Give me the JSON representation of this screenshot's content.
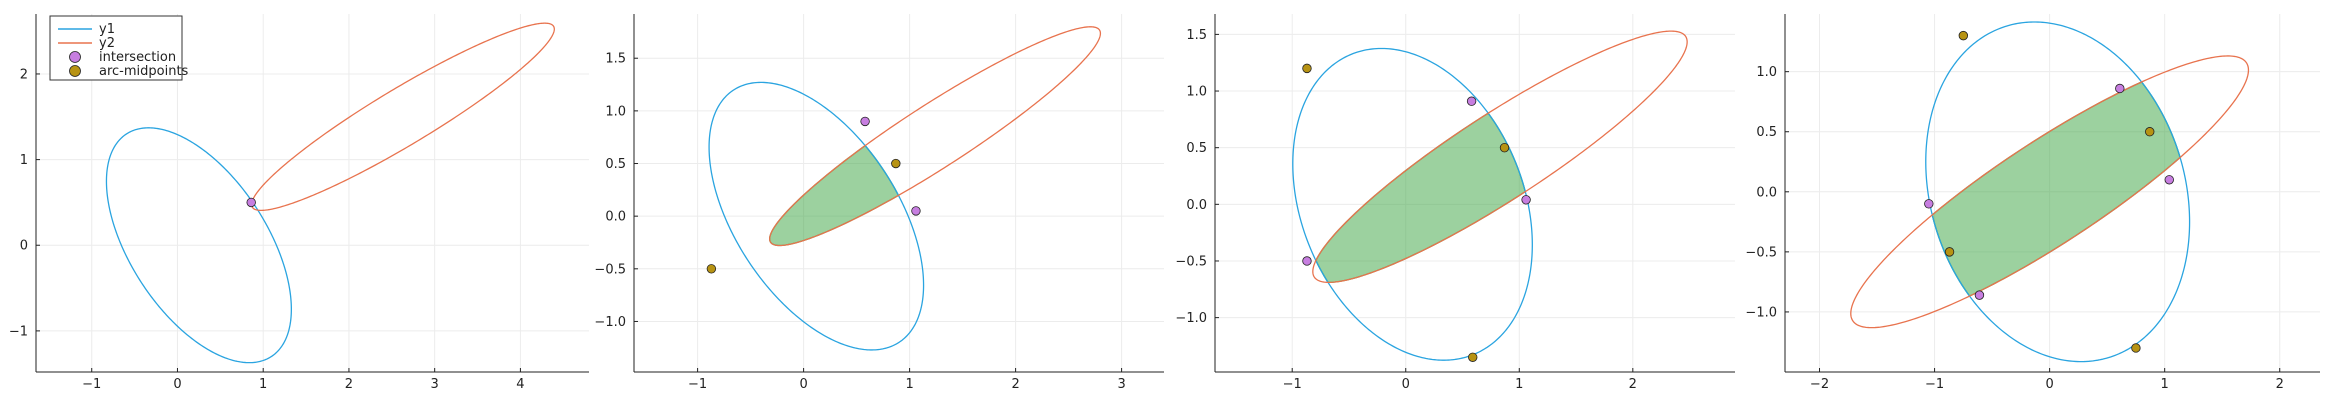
{
  "colors": {
    "y1": "#2aa4e0",
    "y2": "#e8734e",
    "intersection": "#c77ee0",
    "arc_midpoints": "#b79313",
    "fill": "#3aa33f",
    "grid": "#ececec"
  },
  "legend": {
    "placement": "top-left (panel 1)",
    "entries": [
      {
        "label": "y1",
        "kind": "line",
        "color_key": "y1"
      },
      {
        "label": "y2",
        "kind": "line",
        "color_key": "y2"
      },
      {
        "label": "intersection",
        "kind": "marker",
        "color_key": "intersection"
      },
      {
        "label": "arc-midpoints",
        "kind": "marker",
        "color_key": "arc_midpoints"
      }
    ]
  },
  "chart_data": [
    {
      "type": "scatter",
      "title": "",
      "xlabel": "",
      "ylabel": "",
      "grid": true,
      "xlim": [
        -1.65,
        4.8
      ],
      "ylim": [
        -1.48,
        2.7
      ],
      "xticks": [
        -1,
        0,
        1,
        2,
        3,
        4
      ],
      "yticks": [
        -1,
        0,
        1,
        2
      ],
      "curves": [
        {
          "name": "y1",
          "kind": "ellipse",
          "cx": 0.25,
          "cy": 0.0,
          "a": 1.55,
          "b": 0.8,
          "angle_deg": -57
        },
        {
          "name": "y2",
          "kind": "ellipse",
          "cx": 2.63,
          "cy": 1.5,
          "a": 2.05,
          "b": 0.33,
          "angle_deg": 31
        }
      ],
      "intersection": {
        "x": [
          0.86
        ],
        "y": [
          0.5
        ]
      },
      "arc_midpoints": {
        "x": [],
        "y": []
      },
      "filled_region": false
    },
    {
      "type": "scatter",
      "title": "",
      "xlabel": "",
      "ylabel": "",
      "grid": true,
      "xlim": [
        -1.6,
        3.4
      ],
      "ylim": [
        -1.48,
        1.92
      ],
      "xticks": [
        -1,
        0,
        1,
        2,
        3
      ],
      "yticks": [
        -1.0,
        -0.5,
        0.0,
        0.5,
        1.0,
        1.5
      ],
      "curves": [
        {
          "name": "y1",
          "kind": "ellipse",
          "cx": 0.12,
          "cy": 0.0,
          "a": 1.43,
          "b": 0.77,
          "angle_deg": -57
        },
        {
          "name": "y2",
          "kind": "ellipse",
          "cx": 1.24,
          "cy": 0.76,
          "a": 1.85,
          "b": 0.3,
          "angle_deg": 33
        }
      ],
      "intersection": {
        "x": [
          0.58,
          1.06
        ],
        "y": [
          0.9,
          0.05
        ]
      },
      "arc_midpoints": {
        "x": [
          0.87,
          -0.87
        ],
        "y": [
          0.5,
          -0.5
        ]
      },
      "filled_region": true
    },
    {
      "type": "scatter",
      "title": "",
      "xlabel": "",
      "ylabel": "",
      "grid": true,
      "xlim": [
        -1.68,
        2.9
      ],
      "ylim": [
        -1.48,
        1.68
      ],
      "xticks": [
        -1,
        0,
        1,
        2
      ],
      "yticks": [
        -1.0,
        -0.5,
        0.0,
        0.5,
        1.0,
        1.5
      ],
      "curves": [
        {
          "name": "y1",
          "kind": "ellipse",
          "cx": 0.06,
          "cy": 0.0,
          "a": 1.43,
          "b": 0.98,
          "angle_deg": -68
        },
        {
          "name": "y2",
          "kind": "ellipse",
          "cx": 0.83,
          "cy": 0.42,
          "a": 1.95,
          "b": 0.38,
          "angle_deg": 33
        }
      ],
      "intersection": {
        "x": [
          0.58,
          1.06,
          -0.87
        ],
        "y": [
          0.91,
          0.04,
          -0.5
        ]
      },
      "arc_midpoints": {
        "x": [
          0.87,
          -0.87,
          0.59
        ],
        "y": [
          0.5,
          1.2,
          -1.35
        ]
      },
      "filled_region": true
    },
    {
      "type": "scatter",
      "title": "",
      "xlabel": "",
      "ylabel": "",
      "grid": true,
      "xlim": [
        -2.3,
        2.35
      ],
      "ylim": [
        -1.5,
        1.48
      ],
      "xticks": [
        -2,
        -1,
        0,
        1,
        2
      ],
      "yticks": [
        -1.0,
        -0.5,
        0.0,
        0.5,
        1.0
      ],
      "curves": [
        {
          "name": "y1",
          "kind": "ellipse",
          "cx": 0.07,
          "cy": 0.0,
          "a": 1.45,
          "b": 1.1,
          "angle_deg": -70
        },
        {
          "name": "y2",
          "kind": "ellipse",
          "cx": 0.0,
          "cy": 0.0,
          "a": 2.02,
          "b": 0.43,
          "angle_deg": 32
        }
      ],
      "intersection": {
        "x": [
          0.61,
          1.04,
          -1.05,
          -0.61
        ],
        "y": [
          0.86,
          0.1,
          -0.1,
          -0.86
        ]
      },
      "arc_midpoints": {
        "x": [
          -0.75,
          0.87,
          -0.87,
          0.75
        ],
        "y": [
          1.3,
          0.5,
          -0.5,
          -1.3
        ]
      },
      "filled_region": true
    }
  ]
}
